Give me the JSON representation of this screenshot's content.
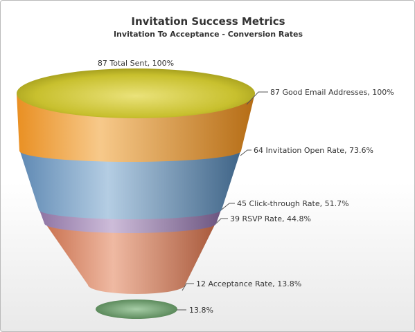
{
  "chart_data": {
    "type": "funnel",
    "title": "Invitation Success Metrics",
    "subtitle": "Invitation To Acceptance - Conversion Rates",
    "stages": [
      {
        "label": "87 Total Sent, 100%",
        "value": 87,
        "percent": 100,
        "color": "#c8c22e"
      },
      {
        "label": "87 Good Email Addresses, 100%",
        "value": 87,
        "percent": 100,
        "color": "#f2a13a"
      },
      {
        "label": "64 Invitation Open Rate, 73.6%",
        "value": 64,
        "percent": 73.6,
        "color": "#7ba3c8"
      },
      {
        "label": "45 Click-through Rate, 51.7%",
        "value": 45,
        "percent": 51.7,
        "color": "#a98fba"
      },
      {
        "label": "39 RSVP Rate, 44.8%",
        "value": 39,
        "percent": 44.8,
        "color": "#d98b6c"
      },
      {
        "label": "12 Acceptance Rate, 13.8%",
        "value": 12,
        "percent": 13.8,
        "color": "#d98b6c"
      },
      {
        "label": "13.8%",
        "value": 12,
        "percent": 13.8,
        "color": "#6e9e6e"
      }
    ]
  }
}
